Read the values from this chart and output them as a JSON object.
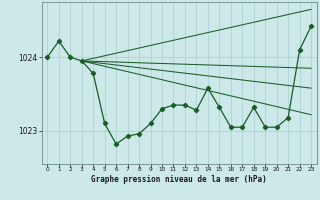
{
  "title": "Graphe pression niveau de la mer (hPa)",
  "bg_color": "#cce8e8",
  "grid_color": "#aacece",
  "line_color": "#1a5c28",
  "plot_bg": "#cce8e8",
  "xlim": [
    -0.5,
    23.5
  ],
  "ylim": [
    1022.55,
    1024.75
  ],
  "yticks": [
    1023,
    1024
  ],
  "xticks": [
    0,
    1,
    2,
    3,
    4,
    5,
    6,
    7,
    8,
    9,
    10,
    11,
    12,
    13,
    14,
    15,
    16,
    17,
    18,
    19,
    20,
    21,
    22,
    23
  ],
  "main_line": [
    [
      0,
      1024.0
    ],
    [
      1,
      1024.22
    ],
    [
      2,
      1024.0
    ],
    [
      3,
      1023.95
    ],
    [
      4,
      1023.78
    ],
    [
      5,
      1023.1
    ],
    [
      6,
      1022.82
    ],
    [
      7,
      1022.93
    ],
    [
      8,
      1022.96
    ],
    [
      9,
      1023.1
    ],
    [
      10,
      1023.3
    ],
    [
      11,
      1023.35
    ],
    [
      12,
      1023.35
    ],
    [
      13,
      1023.28
    ],
    [
      14,
      1023.58
    ],
    [
      15,
      1023.32
    ],
    [
      16,
      1023.05
    ],
    [
      17,
      1023.05
    ],
    [
      18,
      1023.32
    ],
    [
      19,
      1023.05
    ],
    [
      20,
      1023.05
    ],
    [
      21,
      1023.18
    ],
    [
      22,
      1024.1
    ],
    [
      23,
      1024.42
    ]
  ],
  "trend_lines": [
    [
      [
        3,
        1023.95
      ],
      [
        23,
        1024.65
      ]
    ],
    [
      [
        3,
        1023.95
      ],
      [
        23,
        1023.85
      ]
    ],
    [
      [
        3,
        1023.95
      ],
      [
        23,
        1023.58
      ]
    ],
    [
      [
        3,
        1023.95
      ],
      [
        23,
        1023.22
      ]
    ]
  ]
}
